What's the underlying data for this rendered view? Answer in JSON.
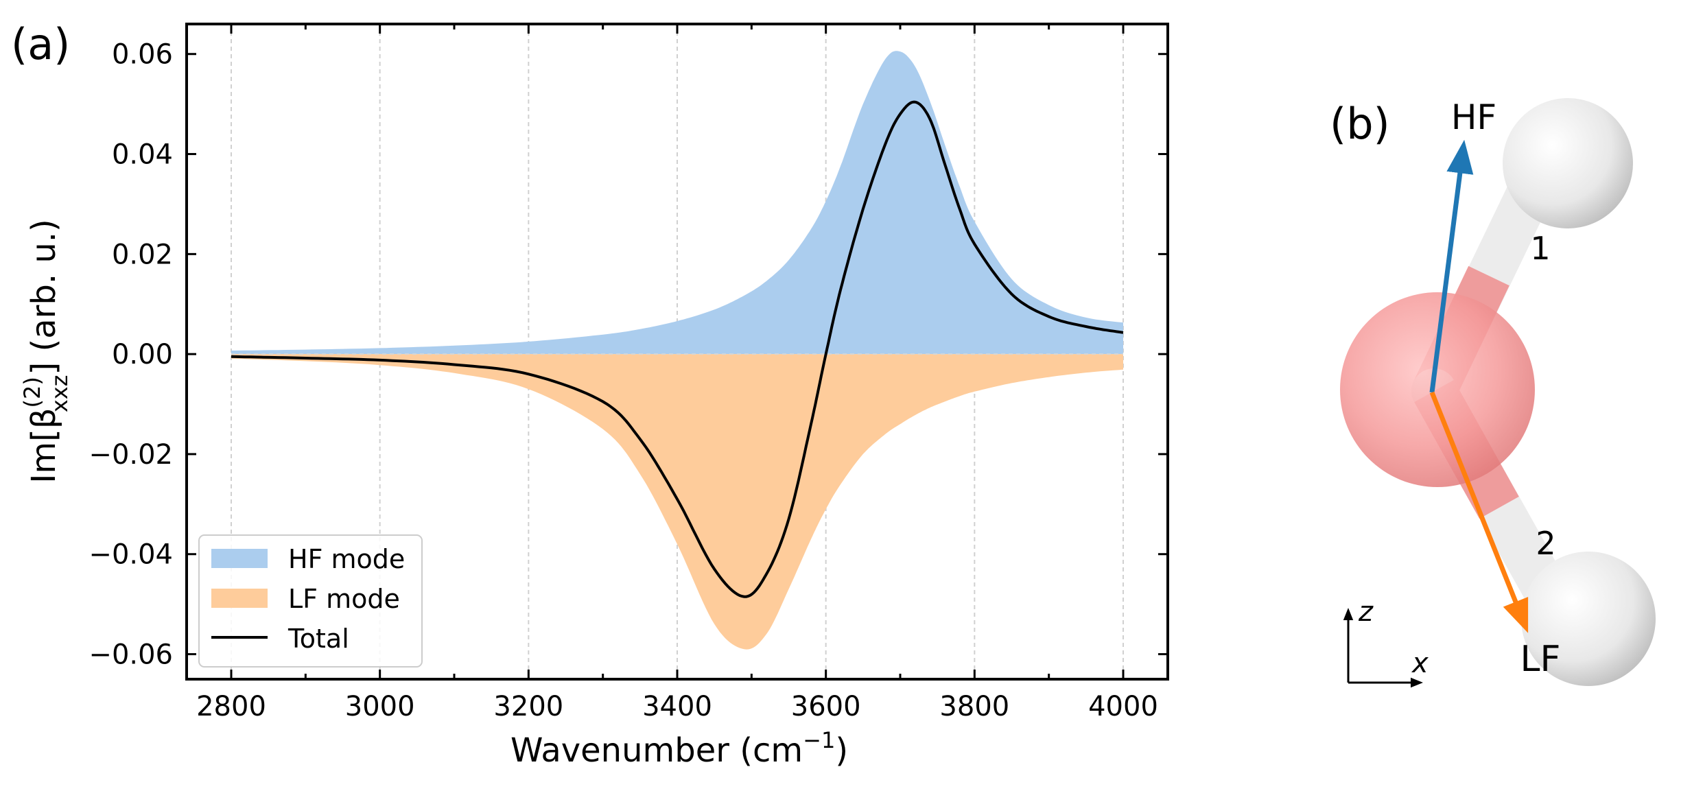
{
  "panel_a": {
    "label": "(a)",
    "xlabel_main": "Wavenumber (cm",
    "xlabel_sup": "−1",
    "xlabel_end": ")",
    "ylabel_pre": "Im[β",
    "ylabel_sup": "(2)",
    "ylabel_sub": "xxz",
    "ylabel_post": "] (arb. u.)"
  },
  "panel_b": {
    "label": "(b)",
    "vec_hf": "HF",
    "vec_lf": "LF",
    "bond_1": "1",
    "bond_2": "2",
    "axis_z": "z",
    "axis_x": "x"
  },
  "colors": {
    "hf_fill": "#abcdee",
    "lf_fill": "#fecc9b",
    "total_line": "#000000",
    "hf_arrow": "#1f77b4",
    "lf_arrow": "#ff7f0e",
    "oxygen": "#f48a8a",
    "hydrogen": "#e6e6e6"
  },
  "chart_data": {
    "type": "area",
    "xlim": [
      2740,
      4060
    ],
    "ylim": [
      -0.065,
      0.066
    ],
    "xticks": [
      2800,
      3000,
      3200,
      3400,
      3600,
      3800,
      4000
    ],
    "xtick_labels": [
      "2800",
      "3000",
      "3200",
      "3400",
      "3600",
      "3800",
      "4000"
    ],
    "yticks": [
      -0.06,
      -0.04,
      -0.02,
      0.0,
      0.02,
      0.04,
      0.06
    ],
    "ytick_labels": [
      "−0.06",
      "−0.04",
      "−0.02",
      "0.00",
      "0.02",
      "0.04",
      "0.06"
    ],
    "grid": "vertical dashed",
    "legend_position": "lower-left",
    "x": [
      2800,
      2900,
      3000,
      3100,
      3200,
      3300,
      3350,
      3400,
      3450,
      3490,
      3520,
      3550,
      3580,
      3600,
      3620,
      3650,
      3680,
      3700,
      3720,
      3740,
      3760,
      3780,
      3800,
      3850,
      3900,
      3950,
      4000
    ],
    "series": [
      {
        "name": "HF mode",
        "style": "fill",
        "values": [
          0.0007,
          0.0009,
          0.0012,
          0.0017,
          0.0025,
          0.0039,
          0.005,
          0.0066,
          0.0089,
          0.0117,
          0.0146,
          0.0188,
          0.025,
          0.0306,
          0.0377,
          0.05,
          0.059,
          0.0605,
          0.0575,
          0.0506,
          0.0419,
          0.0335,
          0.0265,
          0.015,
          0.0098,
          0.0073,
          0.0063
        ]
      },
      {
        "name": "LF mode",
        "style": "fill",
        "values": [
          -0.0009,
          -0.0014,
          -0.0022,
          -0.0038,
          -0.007,
          -0.015,
          -0.024,
          -0.038,
          -0.054,
          -0.059,
          -0.056,
          -0.047,
          -0.037,
          -0.031,
          -0.026,
          -0.02,
          -0.016,
          -0.014,
          -0.0122,
          -0.0107,
          -0.0095,
          -0.0084,
          -0.0075,
          -0.0058,
          -0.0046,
          -0.0037,
          -0.0031
        ]
      },
      {
        "name": "Total",
        "style": "line",
        "values": [
          -0.0005,
          -0.0008,
          -0.0012,
          -0.0021,
          -0.004,
          -0.0095,
          -0.017,
          -0.029,
          -0.043,
          -0.0485,
          -0.044,
          -0.033,
          -0.014,
          0.0,
          0.013,
          0.029,
          0.042,
          0.048,
          0.0504,
          0.047,
          0.038,
          0.029,
          0.022,
          0.012,
          0.0075,
          0.0055,
          0.0043
        ]
      }
    ]
  }
}
